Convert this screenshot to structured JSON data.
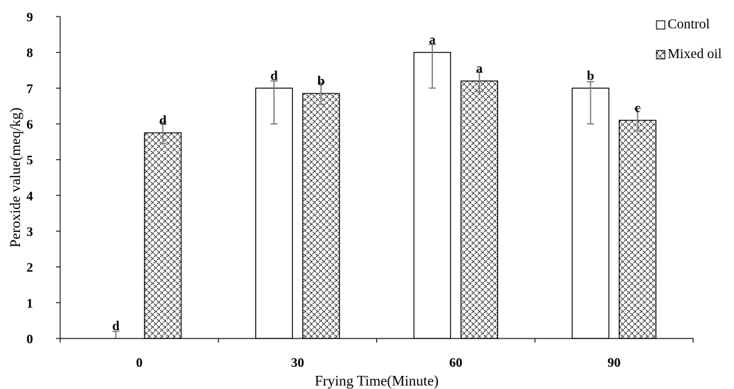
{
  "chart_data": {
    "type": "bar",
    "title": "",
    "xlabel": "Frying Time(Minute)",
    "ylabel": "Peroxide value(meq/kg)",
    "ylim": [
      0,
      9
    ],
    "yticks": [
      0,
      1,
      2,
      3,
      4,
      5,
      6,
      7,
      8,
      9
    ],
    "categories": [
      "0",
      "30",
      "60",
      "90"
    ],
    "grid": false,
    "legend_position": "top-right",
    "series": [
      {
        "name": "Control",
        "pattern": "empty",
        "values": [
          0,
          7,
          8,
          7
        ],
        "error_upper": [
          0.2,
          0.2,
          0.22,
          0.18
        ],
        "error_lower": [
          0,
          1.0,
          1.0,
          1.0
        ],
        "labels": [
          "d",
          "d",
          "a",
          "b"
        ]
      },
      {
        "name": "Mixed oil",
        "pattern": "diagonal-crosshatch",
        "values": [
          5.75,
          6.85,
          7.2,
          6.1
        ],
        "error_upper": [
          0.3,
          0.3,
          0.25,
          0.33
        ],
        "error_lower": [
          0.3,
          0.3,
          0.3,
          0.3
        ],
        "labels": [
          "d",
          "b",
          "a",
          "c"
        ]
      }
    ],
    "colors": {
      "bar_stroke": "#000000",
      "error_bar": "#7f7f7f",
      "bar_fill": "#ffffff"
    }
  }
}
